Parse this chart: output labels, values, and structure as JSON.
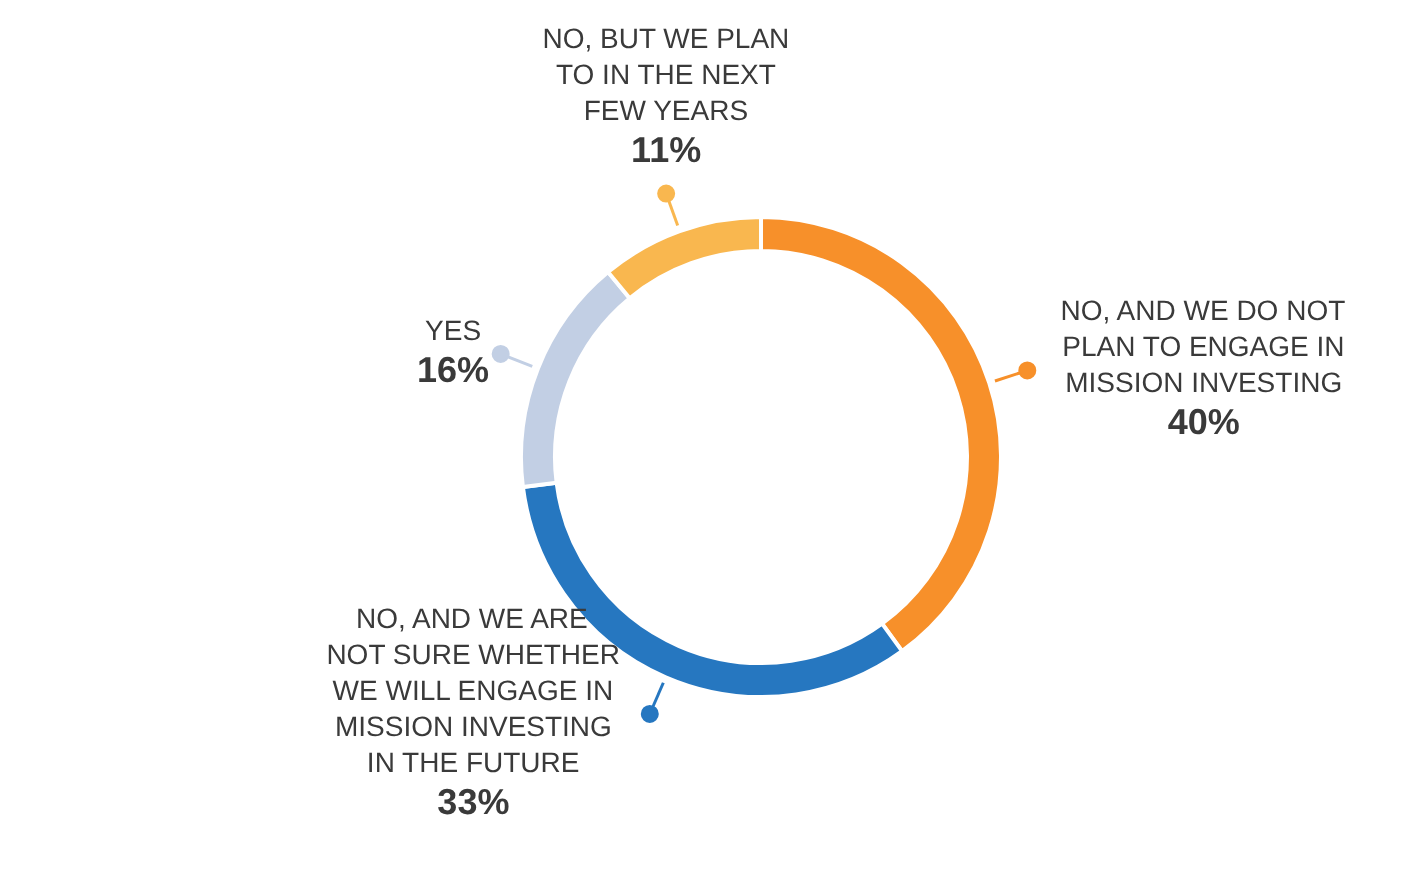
{
  "chart_data": {
    "type": "donut",
    "categories": [
      "NO, AND WE DO NOT PLAN TO ENGAGE IN MISSION INVESTING",
      "NO, AND WE ARE NOT SURE WHETHER WE WILL ENGAGE IN MISSION INVESTING IN THE FUTURE",
      "YES",
      "NO, BUT WE PLAN TO IN THE NEXT FEW YEARS"
    ],
    "values": [
      40,
      33,
      16,
      11
    ],
    "colors": [
      "#f7902a",
      "#2677c0",
      "#c2cfe4",
      "#f9b74f"
    ],
    "value_labels": [
      "40%",
      "33%",
      "16%",
      "11%"
    ]
  }
}
